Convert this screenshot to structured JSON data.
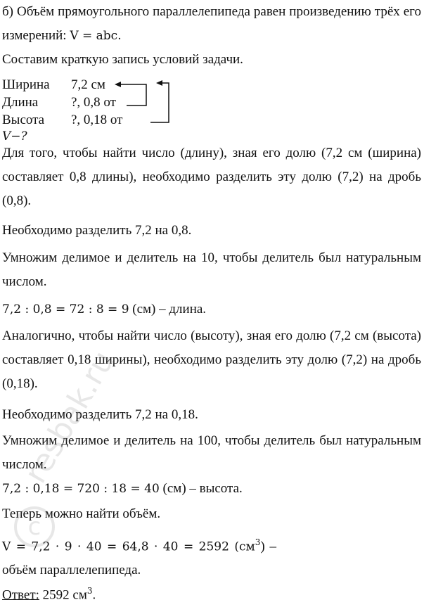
{
  "lines": {
    "l1": "б) Объём прямоугольного параллелепипеда равен произведению трёх его измерений:",
    "l1_formula": "V = abc.",
    "l2": "Составим краткую запись условий задачи.",
    "table": [
      {
        "label": "Ширина",
        "value": "7,2 см"
      },
      {
        "label": "Длина",
        "value": "?,   0,8 от"
      },
      {
        "label": "Высота",
        "value": "?,   0,18 от"
      }
    ],
    "question": "V−?",
    "p1": "Для того, чтобы найти число (длину), зная его долю (7,2 см (ширина) составляет 0,8 длины), необходимо разделить эту долю (7,2) на дробь (0,8).",
    "p2": "Необходимо разделить 7,2 на 0,8.",
    "p3": "Умножим делимое и делитель на 10, чтобы делитель был натуральным числом.",
    "calc1": "7,2 : 0,8 = 72 : 8 = 9",
    "calc1_tail": " (см) – длина.",
    "p4": "Аналогично, чтобы найти число (высоту), зная его долю (7,2 см (высота) составляет 0,18 ширины), необходимо разделить эту долю (7,2) на дробь (0,18).",
    "p5": "Необходимо разделить 7,2 на 0,18.",
    "p6": "Умножим делимое и делитель на 100, чтобы делитель был натуральным числом.",
    "calc2": "7,2 : 0,18 = 720 : 18 = 40",
    "calc2_tail": " (см) – высота.",
    "p7": "Теперь можно найти объём.",
    "calc3": "V = 7,2 · 9 · 40 = 64,8 · 40 = 2592 (см",
    "calc3_sup": "3",
    "calc3_tail": ") – объём параллелепипеда.",
    "answer_label": "Ответ:",
    "answer_value": " 2592 см",
    "answer_sup": "3",
    "answer_end": "."
  },
  "watermark": "resbak.ru"
}
